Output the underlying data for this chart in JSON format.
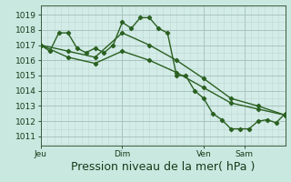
{
  "bg_color": "#c8e8e0",
  "plot_bg_color": "#d4ece8",
  "grid_color_major": "#a8c4c0",
  "grid_color_minor": "#bcd8d4",
  "line_color": "#2a6020",
  "marker_color": "#2a6020",
  "xlabel": "Pression niveau de la mer( hPa )",
  "xlabel_fontsize": 9,
  "yticks": [
    1011,
    1012,
    1013,
    1014,
    1015,
    1016,
    1017,
    1018,
    1019
  ],
  "ymin": 1010.4,
  "ymax": 1019.6,
  "xtick_labels": [
    "Jeu",
    "Dim",
    "Ven",
    "Sam"
  ],
  "xtick_positions": [
    0,
    54,
    108,
    135
  ],
  "xmax": 162,
  "series1_x": [
    0,
    6,
    12,
    18,
    24,
    30,
    36,
    42,
    48,
    54,
    60,
    66,
    72,
    78,
    84,
    90,
    96,
    102,
    108,
    114,
    120,
    126,
    132,
    138,
    144,
    150,
    156,
    162
  ],
  "series1_y": [
    1017.0,
    1016.6,
    1017.8,
    1017.8,
    1016.8,
    1016.5,
    1016.8,
    1016.5,
    1017.0,
    1018.5,
    1018.1,
    1018.8,
    1018.8,
    1018.1,
    1017.8,
    1015.0,
    1015.0,
    1014.0,
    1013.5,
    1012.5,
    1012.1,
    1011.5,
    1011.5,
    1011.5,
    1012.0,
    1012.1,
    1011.9,
    1012.5
  ],
  "series2_x": [
    0,
    18,
    36,
    54,
    72,
    90,
    108,
    126,
    144,
    162
  ],
  "series2_y": [
    1017.0,
    1016.6,
    1016.2,
    1017.8,
    1017.0,
    1016.0,
    1014.8,
    1013.5,
    1013.0,
    1012.4
  ],
  "series3_x": [
    0,
    18,
    36,
    54,
    72,
    90,
    108,
    126,
    144,
    162
  ],
  "series3_y": [
    1017.0,
    1016.2,
    1015.8,
    1016.6,
    1016.0,
    1015.2,
    1014.2,
    1013.2,
    1012.8,
    1012.4
  ]
}
